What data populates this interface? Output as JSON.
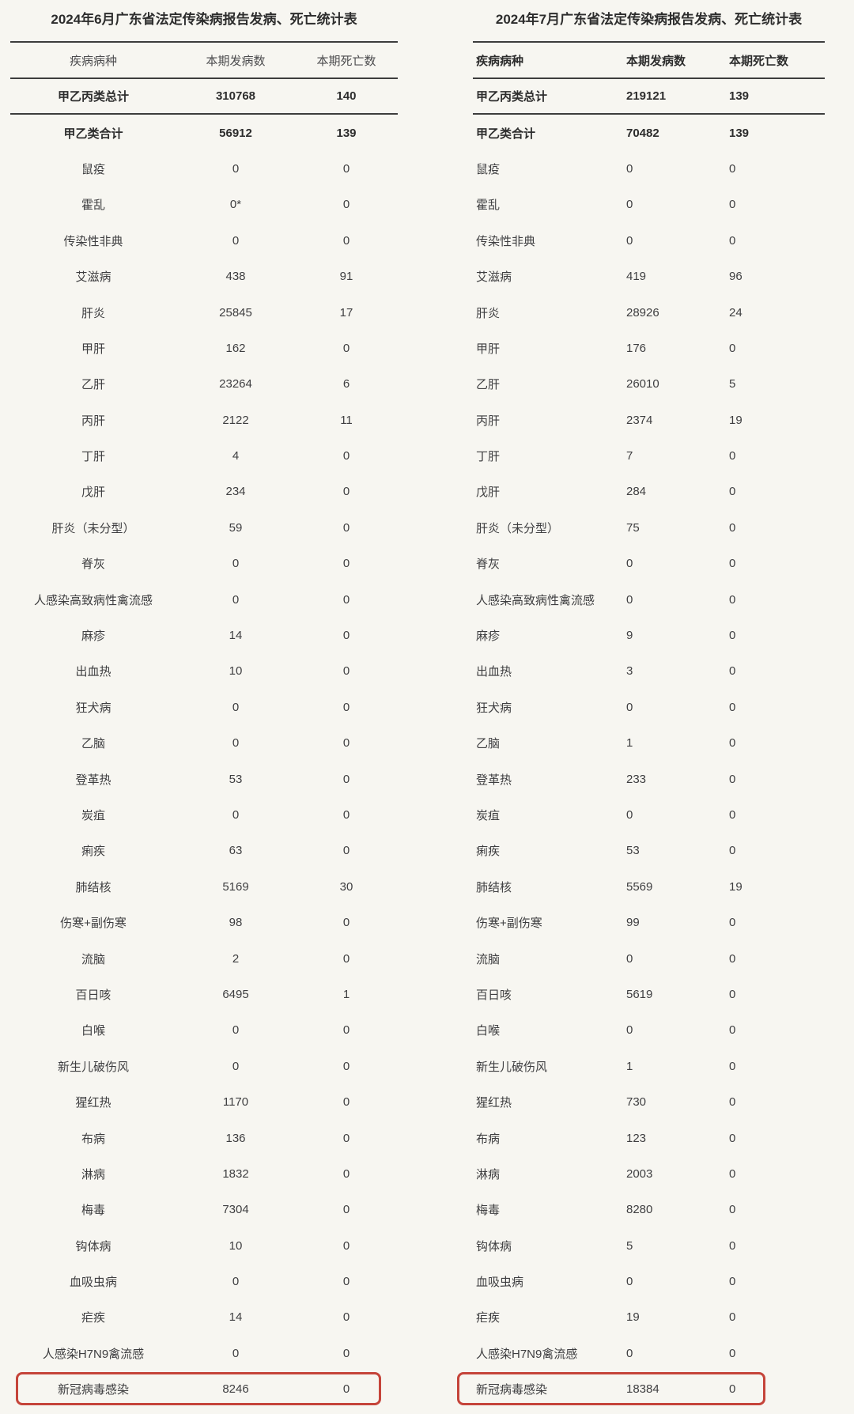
{
  "page": {
    "background_color": "#f7f6f1",
    "highlight_box_color": "#c5443a"
  },
  "tables": [
    {
      "id": "june-2024",
      "title": "2024年6月广东省法定传染病报告发病、死亡统计表",
      "columns": [
        "疾病病种",
        "本期发病数",
        "本期死亡数"
      ],
      "rows": [
        {
          "disease": "甲乙丙类总计",
          "cases": "310768",
          "deaths": "140",
          "bold": true,
          "rule_after": true
        },
        {
          "disease": "甲乙类合计",
          "cases": "56912",
          "deaths": "139",
          "bold": true
        },
        {
          "disease": "鼠疫",
          "cases": "0",
          "deaths": "0"
        },
        {
          "disease": "霍乱",
          "cases": "0*",
          "deaths": "0"
        },
        {
          "disease": "传染性非典",
          "cases": "0",
          "deaths": "0"
        },
        {
          "disease": "艾滋病",
          "cases": "438",
          "deaths": "91"
        },
        {
          "disease": "肝炎",
          "cases": "25845",
          "deaths": "17"
        },
        {
          "disease": "甲肝",
          "cases": "162",
          "deaths": "0"
        },
        {
          "disease": "乙肝",
          "cases": "23264",
          "deaths": "6"
        },
        {
          "disease": "丙肝",
          "cases": "2122",
          "deaths": "11"
        },
        {
          "disease": "丁肝",
          "cases": "4",
          "deaths": "0"
        },
        {
          "disease": "戊肝",
          "cases": "234",
          "deaths": "0"
        },
        {
          "disease": "肝炎（未分型）",
          "cases": "59",
          "deaths": "0"
        },
        {
          "disease": "脊灰",
          "cases": "0",
          "deaths": "0"
        },
        {
          "disease": "人感染高致病性禽流感",
          "cases": "0",
          "deaths": "0"
        },
        {
          "disease": "麻疹",
          "cases": "14",
          "deaths": "0"
        },
        {
          "disease": "出血热",
          "cases": "10",
          "deaths": "0"
        },
        {
          "disease": "狂犬病",
          "cases": "0",
          "deaths": "0"
        },
        {
          "disease": "乙脑",
          "cases": "0",
          "deaths": "0"
        },
        {
          "disease": "登革热",
          "cases": "53",
          "deaths": "0"
        },
        {
          "disease": "炭疽",
          "cases": "0",
          "deaths": "0"
        },
        {
          "disease": "痢疾",
          "cases": "63",
          "deaths": "0"
        },
        {
          "disease": "肺结核",
          "cases": "5169",
          "deaths": "30"
        },
        {
          "disease": "伤寒+副伤寒",
          "cases": "98",
          "deaths": "0"
        },
        {
          "disease": "流脑",
          "cases": "2",
          "deaths": "0"
        },
        {
          "disease": "百日咳",
          "cases": "6495",
          "deaths": "1"
        },
        {
          "disease": "白喉",
          "cases": "0",
          "deaths": "0"
        },
        {
          "disease": "新生儿破伤风",
          "cases": "0",
          "deaths": "0"
        },
        {
          "disease": "猩红热",
          "cases": "1170",
          "deaths": "0"
        },
        {
          "disease": "布病",
          "cases": "136",
          "deaths": "0"
        },
        {
          "disease": "淋病",
          "cases": "1832",
          "deaths": "0"
        },
        {
          "disease": "梅毒",
          "cases": "7304",
          "deaths": "0"
        },
        {
          "disease": "钩体病",
          "cases": "10",
          "deaths": "0"
        },
        {
          "disease": "血吸虫病",
          "cases": "0",
          "deaths": "0"
        },
        {
          "disease": "疟疾",
          "cases": "14",
          "deaths": "0"
        },
        {
          "disease": "人感染H7N9禽流感",
          "cases": "0",
          "deaths": "0"
        },
        {
          "disease": "新冠病毒感染",
          "cases": "8246",
          "deaths": "0",
          "highlighted": true
        }
      ]
    },
    {
      "id": "july-2024",
      "title": "2024年7月广东省法定传染病报告发病、死亡统计表",
      "columns": [
        "疾病病种",
        "本期发病数",
        "本期死亡数"
      ],
      "rows": [
        {
          "disease": "甲乙丙类总计",
          "cases": "219121",
          "deaths": "139",
          "bold": true,
          "rule_after": true
        },
        {
          "disease": "甲乙类合计",
          "cases": "70482",
          "deaths": "139",
          "bold": true
        },
        {
          "disease": "鼠疫",
          "cases": "0",
          "deaths": "0"
        },
        {
          "disease": "霍乱",
          "cases": "0",
          "deaths": "0"
        },
        {
          "disease": "传染性非典",
          "cases": "0",
          "deaths": "0"
        },
        {
          "disease": "艾滋病",
          "cases": "419",
          "deaths": "96"
        },
        {
          "disease": "肝炎",
          "cases": "28926",
          "deaths": "24"
        },
        {
          "disease": "甲肝",
          "cases": "176",
          "deaths": "0"
        },
        {
          "disease": "乙肝",
          "cases": "26010",
          "deaths": "5"
        },
        {
          "disease": "丙肝",
          "cases": "2374",
          "deaths": "19"
        },
        {
          "disease": "丁肝",
          "cases": "7",
          "deaths": "0"
        },
        {
          "disease": "戊肝",
          "cases": "284",
          "deaths": "0"
        },
        {
          "disease": "肝炎（未分型）",
          "cases": "75",
          "deaths": "0"
        },
        {
          "disease": "脊灰",
          "cases": "0",
          "deaths": "0"
        },
        {
          "disease": "人感染高致病性禽流感",
          "cases": "0",
          "deaths": "0"
        },
        {
          "disease": "麻疹",
          "cases": "9",
          "deaths": "0"
        },
        {
          "disease": "出血热",
          "cases": "3",
          "deaths": "0"
        },
        {
          "disease": "狂犬病",
          "cases": "0",
          "deaths": "0"
        },
        {
          "disease": "乙脑",
          "cases": "1",
          "deaths": "0"
        },
        {
          "disease": "登革热",
          "cases": "233",
          "deaths": "0"
        },
        {
          "disease": "炭疽",
          "cases": "0",
          "deaths": "0"
        },
        {
          "disease": "痢疾",
          "cases": "53",
          "deaths": "0"
        },
        {
          "disease": "肺结核",
          "cases": "5569",
          "deaths": "19"
        },
        {
          "disease": "伤寒+副伤寒",
          "cases": "99",
          "deaths": "0"
        },
        {
          "disease": "流脑",
          "cases": "0",
          "deaths": "0"
        },
        {
          "disease": "百日咳",
          "cases": "5619",
          "deaths": "0"
        },
        {
          "disease": "白喉",
          "cases": "0",
          "deaths": "0"
        },
        {
          "disease": "新生儿破伤风",
          "cases": "1",
          "deaths": "0"
        },
        {
          "disease": "猩红热",
          "cases": "730",
          "deaths": "0"
        },
        {
          "disease": "布病",
          "cases": "123",
          "deaths": "0"
        },
        {
          "disease": "淋病",
          "cases": "2003",
          "deaths": "0"
        },
        {
          "disease": "梅毒",
          "cases": "8280",
          "deaths": "0"
        },
        {
          "disease": "钩体病",
          "cases": "5",
          "deaths": "0"
        },
        {
          "disease": "血吸虫病",
          "cases": "0",
          "deaths": "0"
        },
        {
          "disease": "疟疾",
          "cases": "19",
          "deaths": "0"
        },
        {
          "disease": "人感染H7N9禽流感",
          "cases": "0",
          "deaths": "0"
        },
        {
          "disease": "新冠病毒感染",
          "cases": "18384",
          "deaths": "0",
          "highlighted": true
        }
      ]
    }
  ]
}
